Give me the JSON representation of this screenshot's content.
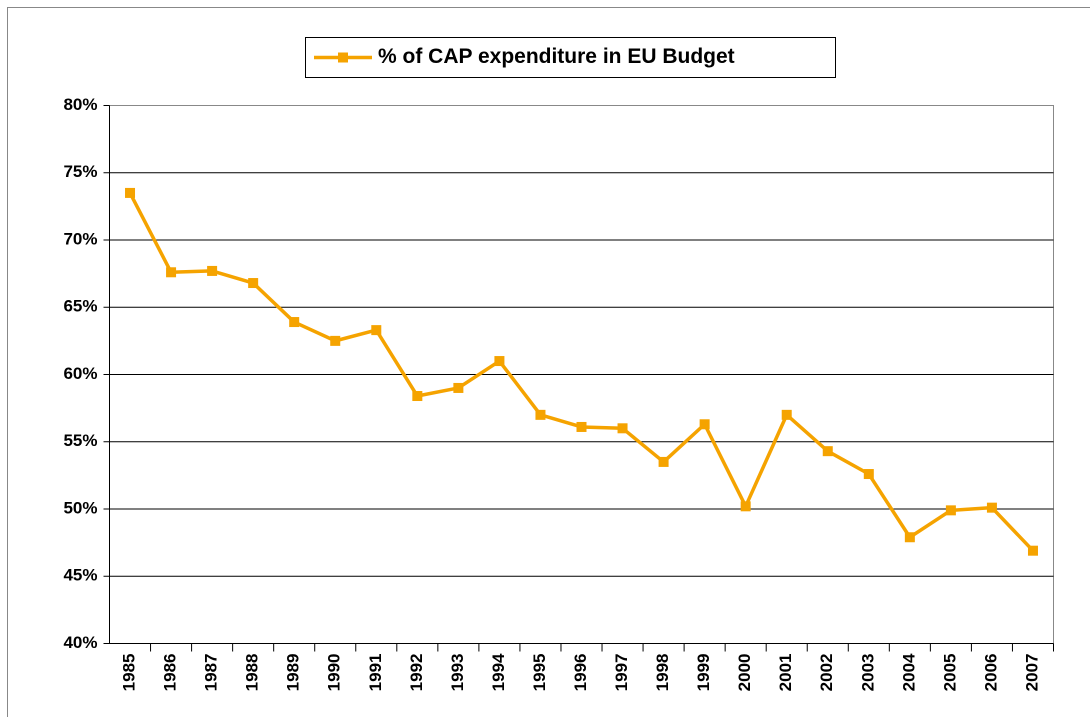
{
  "chart_data": {
    "type": "line",
    "categories": [
      "1985",
      "1986",
      "1987",
      "1988",
      "1989",
      "1990",
      "1991",
      "1992",
      "1993",
      "1994",
      "1995",
      "1996",
      "1997",
      "1998",
      "1999",
      "2000",
      "2001",
      "2002",
      "2003",
      "2004",
      "2005",
      "2006",
      "2007"
    ],
    "series": [
      {
        "name": "% of CAP expenditure in EU Budget",
        "color": "#f5a300",
        "values": [
          73.5,
          67.6,
          67.7,
          66.8,
          63.9,
          62.5,
          63.3,
          58.4,
          59.0,
          61.0,
          57.0,
          56.1,
          56.0,
          53.5,
          56.3,
          50.2,
          57.0,
          54.3,
          52.6,
          47.9,
          49.9,
          50.1,
          46.9
        ]
      }
    ],
    "ylim": [
      40,
      80
    ],
    "yticks": [
      {
        "value": 40,
        "label": "40%"
      },
      {
        "value": 45,
        "label": "45%"
      },
      {
        "value": 50,
        "label": "50%"
      },
      {
        "value": 55,
        "label": "55%"
      },
      {
        "value": 60,
        "label": "60%"
      },
      {
        "value": 65,
        "label": "65%"
      },
      {
        "value": 70,
        "label": "70%"
      },
      {
        "value": 75,
        "label": "75%"
      },
      {
        "value": 80,
        "label": "80%"
      }
    ],
    "grid": true,
    "legend": "top"
  }
}
